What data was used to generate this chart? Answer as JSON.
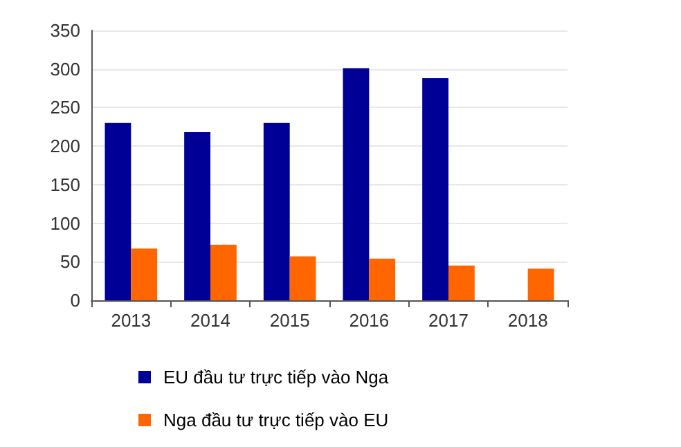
{
  "chart_data": {
    "type": "bar",
    "categories": [
      "2013",
      "2014",
      "2015",
      "2016",
      "2017",
      "2018"
    ],
    "series": [
      {
        "name": "EU đầu tư trực tiếp vào Nga",
        "color": "#000096",
        "values": [
          230,
          218,
          230,
          301,
          288,
          null
        ]
      },
      {
        "name": "Nga đầu tư trực tiếp vào EU",
        "color": "#ff6600",
        "values": [
          67,
          72,
          57,
          54,
          45,
          41
        ]
      }
    ],
    "ylim": [
      0,
      350
    ],
    "yticks": [
      0,
      50,
      100,
      150,
      200,
      250,
      300,
      350
    ],
    "grid": "y",
    "legend": "bottom left"
  }
}
